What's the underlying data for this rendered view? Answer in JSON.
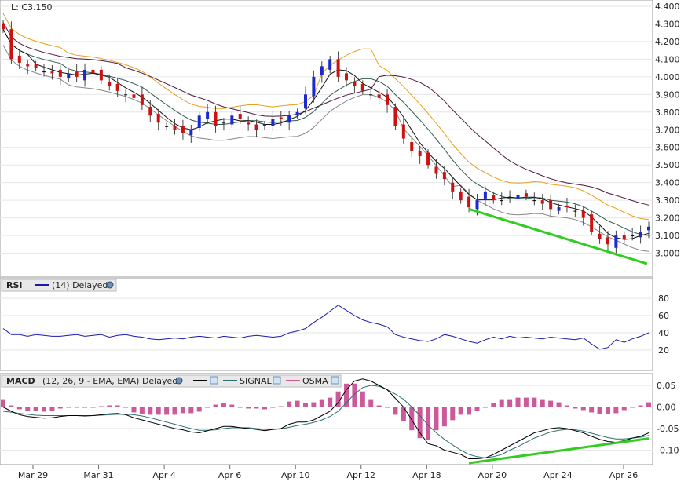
{
  "last_label": "L: C3.150",
  "colors": {
    "up": "#1a2ad0",
    "down": "#cc1111",
    "flat": "#000000",
    "ma_fast": "#111111",
    "ma_mid": "#2f5a4e",
    "ma_slow": "#4a1840",
    "bb": "#888888",
    "bb_upper": "#e8a020",
    "trend": "#33cc22",
    "rsi": "#1a1aaa",
    "macd": "#000000",
    "signal": "#2c6f70",
    "osma": "#cc5a9a"
  },
  "x_labels": [
    "Mar 29",
    "Mar 31",
    "Apr 4",
    "Apr 6",
    "Apr 10",
    "Apr 12",
    "Apr 18",
    "Apr 20",
    "Apr 24",
    "Apr 26"
  ],
  "price_ticks": [
    "4.400",
    "4.300",
    "4.200",
    "4.100",
    "4.000",
    "3.900",
    "3.800",
    "3.700",
    "3.600",
    "3.500",
    "3.400",
    "3.300",
    "3.200",
    "3.100",
    "3.000"
  ],
  "rsi_panel": {
    "title": "RSI",
    "legend": "(14) Delayed",
    "ticks": [
      "80",
      "60",
      "40",
      "20"
    ]
  },
  "macd_panel": {
    "title": "MACD",
    "legend": "(12, 26, 9 - EMA, EMA) Delayed",
    "signal_label": "SIGNAL",
    "osma_label": "OSMA",
    "ticks": [
      "0.05",
      "0.00",
      "-0.05",
      "-0.10"
    ]
  },
  "chart_data": [
    {
      "type": "candlestick",
      "title": "",
      "ylim": [
        2.9,
        4.4
      ],
      "candles_approx": {
        "count": 80,
        "close_path": [
          4.27,
          4.1,
          4.08,
          4.06,
          4.05,
          4.03,
          4.02,
          4.0,
          4.02,
          4.0,
          4.04,
          4.02,
          3.98,
          3.95,
          3.92,
          3.9,
          3.88,
          3.84,
          3.78,
          3.74,
          3.72,
          3.7,
          3.68,
          3.7,
          3.78,
          3.8,
          3.72,
          3.74,
          3.78,
          3.76,
          3.73,
          3.7,
          3.73,
          3.76,
          3.76,
          3.78,
          3.8,
          3.9,
          4.0,
          4.06,
          4.1,
          4.0,
          3.98,
          3.95,
          3.92,
          3.9,
          3.88,
          3.84,
          3.72,
          3.65,
          3.58,
          3.55,
          3.5,
          3.45,
          3.42,
          3.35,
          3.3,
          3.26,
          3.3,
          3.35,
          3.3,
          3.3,
          3.32,
          3.33,
          3.32,
          3.3,
          3.28,
          3.25,
          3.26,
          3.26,
          3.24,
          3.2,
          3.12,
          3.08,
          3.05,
          3.1,
          3.08,
          3.1,
          3.12,
          3.15
        ]
      },
      "moving_averages": [
        "fast",
        "mid",
        "slow"
      ],
      "bollinger": true
    },
    {
      "type": "line",
      "name": "RSI",
      "ylim": [
        0,
        100
      ],
      "values": [
        45,
        38,
        38,
        36,
        38,
        37,
        36,
        36,
        37,
        38,
        36,
        37,
        38,
        35,
        37,
        38,
        36,
        35,
        33,
        32,
        33,
        34,
        33,
        35,
        36,
        35,
        34,
        36,
        35,
        34,
        36,
        37,
        36,
        35,
        36,
        40,
        42,
        45,
        52,
        58,
        65,
        72,
        66,
        60,
        55,
        52,
        50,
        47,
        38,
        35,
        33,
        31,
        30,
        33,
        38,
        36,
        33,
        30,
        28,
        32,
        35,
        33,
        36,
        34,
        35,
        34,
        33,
        35,
        34,
        33,
        32,
        34,
        27,
        21,
        23,
        32,
        29,
        33,
        36,
        40
      ]
    },
    {
      "type": "line",
      "name": "MACD",
      "ylim": [
        -0.13,
        0.07
      ],
      "series": [
        {
          "name": "MACD",
          "values": [
            0.0,
            -0.01,
            -0.018,
            -0.022,
            -0.024,
            -0.026,
            -0.025,
            -0.022,
            -0.02,
            -0.02,
            -0.021,
            -0.02,
            -0.018,
            -0.016,
            -0.015,
            -0.018,
            -0.025,
            -0.03,
            -0.035,
            -0.04,
            -0.045,
            -0.05,
            -0.053,
            -0.058,
            -0.06,
            -0.055,
            -0.05,
            -0.045,
            -0.045,
            -0.048,
            -0.05,
            -0.052,
            -0.055,
            -0.052,
            -0.05,
            -0.04,
            -0.035,
            -0.035,
            -0.03,
            -0.02,
            -0.01,
            0.01,
            0.04,
            0.06,
            0.065,
            0.06,
            0.05,
            0.04,
            0.02,
            0.0,
            -0.03,
            -0.06,
            -0.085,
            -0.09,
            -0.1,
            -0.105,
            -0.11,
            -0.12,
            -0.12,
            -0.118,
            -0.11,
            -0.1,
            -0.09,
            -0.08,
            -0.07,
            -0.06,
            -0.055,
            -0.05,
            -0.048,
            -0.05,
            -0.055,
            -0.06,
            -0.068,
            -0.075,
            -0.08,
            -0.082,
            -0.078,
            -0.072,
            -0.068,
            -0.06
          ]
        },
        {
          "name": "SIGNAL",
          "values": [
            -0.01,
            -0.012,
            -0.015,
            -0.017,
            -0.019,
            -0.02,
            -0.02,
            -0.02,
            -0.02,
            -0.02,
            -0.02,
            -0.02,
            -0.019,
            -0.018,
            -0.017,
            -0.017,
            -0.018,
            -0.021,
            -0.025,
            -0.03,
            -0.035,
            -0.04,
            -0.045,
            -0.05,
            -0.054,
            -0.054,
            -0.053,
            -0.05,
            -0.048,
            -0.048,
            -0.048,
            -0.05,
            -0.052,
            -0.052,
            -0.051,
            -0.047,
            -0.043,
            -0.04,
            -0.036,
            -0.03,
            -0.022,
            -0.01,
            0.01,
            0.03,
            0.045,
            0.05,
            0.048,
            0.04,
            0.03,
            0.018,
            0.0,
            -0.02,
            -0.042,
            -0.06,
            -0.075,
            -0.088,
            -0.1,
            -0.11,
            -0.115,
            -0.118,
            -0.115,
            -0.11,
            -0.1,
            -0.092,
            -0.082,
            -0.072,
            -0.065,
            -0.058,
            -0.054,
            -0.052,
            -0.053,
            -0.056,
            -0.061,
            -0.066,
            -0.071,
            -0.074,
            -0.074,
            -0.072,
            -0.07,
            -0.066
          ]
        }
      ],
      "osma": [
        0.01,
        0.002,
        -0.003,
        -0.005,
        -0.005,
        -0.006,
        -0.005,
        -0.002,
        0.0,
        0.0,
        -0.001,
        0.0,
        0.001,
        0.002,
        0.002,
        -0.001,
        -0.007,
        -0.009,
        -0.01,
        -0.01,
        -0.01,
        -0.01,
        -0.008,
        -0.008,
        -0.006,
        -0.001,
        0.003,
        0.005,
        0.003,
        0.0,
        -0.002,
        -0.002,
        -0.003,
        0.0,
        0.001,
        0.007,
        0.008,
        0.005,
        0.006,
        0.01,
        0.012,
        0.02,
        0.03,
        0.03,
        0.02,
        0.01,
        0.002,
        0.0,
        -0.01,
        -0.018,
        -0.03,
        -0.04,
        -0.043,
        -0.03,
        -0.025,
        -0.017,
        -0.01,
        -0.01,
        -0.005,
        0.0,
        0.005,
        0.01,
        0.01,
        0.012,
        0.012,
        0.012,
        0.01,
        0.008,
        0.006,
        0.002,
        -0.002,
        -0.004,
        -0.007,
        -0.009,
        -0.009,
        -0.008,
        -0.004,
        0.0,
        0.002,
        0.006
      ]
    }
  ]
}
